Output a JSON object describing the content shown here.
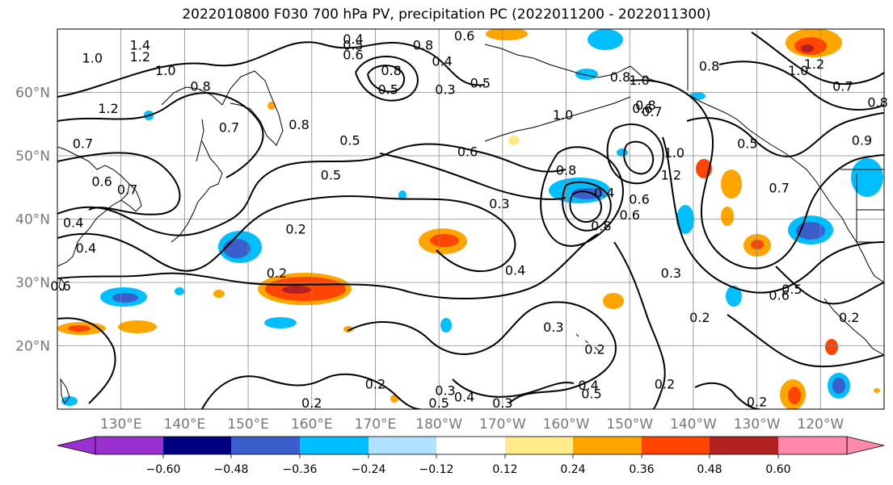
{
  "title": "2022010800 F030 700 hPa PV, precipitation PC (2022011200 - 2022011300)",
  "lat_labels": [
    {
      "lat": 60,
      "text": "60°N"
    },
    {
      "lat": 50,
      "text": "50°N"
    },
    {
      "lat": 40,
      "text": "40°N"
    },
    {
      "lat": 30,
      "text": "30°N"
    },
    {
      "lat": 20,
      "text": "20°N"
    }
  ],
  "lon_labels": [
    {
      "lon": 130,
      "text": "130°E"
    },
    {
      "lon": 140,
      "text": "140°E"
    },
    {
      "lon": 150,
      "text": "150°E"
    },
    {
      "lon": 160,
      "text": "160°E"
    },
    {
      "lon": 170,
      "text": "170°E"
    },
    {
      "lon": 180,
      "text": "180°W"
    },
    {
      "lon": 190,
      "text": "170°W"
    },
    {
      "lon": 200,
      "text": "160°W"
    },
    {
      "lon": 210,
      "text": "150°W"
    },
    {
      "lon": 220,
      "text": "140°W"
    },
    {
      "lon": 230,
      "text": "130°W"
    },
    {
      "lon": 240,
      "text": "120°W"
    }
  ],
  "colorbar": {
    "colors": [
      "#9b30d0",
      "#000080",
      "#3a5fcd",
      "#00bfff",
      "#b0e2ff",
      "#ffffff",
      "#ffeb8a",
      "#ffa500",
      "#ff4500",
      "#b22222",
      "#ff88aa"
    ],
    "ticks": [
      "−0.60",
      "−0.48",
      "−0.36",
      "−0.24",
      "−0.12",
      "0.12",
      "0.24",
      "0.36",
      "0.48",
      "0.60"
    ]
  },
  "contour_labels": [
    {
      "lon": 125.5,
      "lat": 65.5,
      "text": "1.0"
    },
    {
      "lon": 133,
      "lat": 67.5,
      "text": "1.4"
    },
    {
      "lon": 133,
      "lat": 65.7,
      "text": "1.2"
    },
    {
      "lon": 137,
      "lat": 63.5,
      "text": "1.0"
    },
    {
      "lon": 128,
      "lat": 57.5,
      "text": "1.2"
    },
    {
      "lon": 142.5,
      "lat": 61,
      "text": "0.8"
    },
    {
      "lon": 124,
      "lat": 52,
      "text": "0.7"
    },
    {
      "lon": 147,
      "lat": 54.5,
      "text": "0.7"
    },
    {
      "lon": 158,
      "lat": 55,
      "text": "0.8"
    },
    {
      "lon": 166.5,
      "lat": 68.5,
      "text": "0.4"
    },
    {
      "lon": 166.5,
      "lat": 67.5,
      "text": "0.5"
    },
    {
      "lon": 166.5,
      "lat": 66,
      "text": "0.6"
    },
    {
      "lon": 172.5,
      "lat": 63.5,
      "text": "0.8"
    },
    {
      "lon": 177.5,
      "lat": 67.5,
      "text": "0.8"
    },
    {
      "lon": 180.5,
      "lat": 65,
      "text": "0.4"
    },
    {
      "lon": 184,
      "lat": 69,
      "text": "0.6"
    },
    {
      "lon": 181,
      "lat": 60.5,
      "text": "0.3"
    },
    {
      "lon": 186.5,
      "lat": 61.5,
      "text": "0.5"
    },
    {
      "lon": 172,
      "lat": 60.5,
      "text": "0.5"
    },
    {
      "lon": 166,
      "lat": 52.5,
      "text": "0.5"
    },
    {
      "lon": 163,
      "lat": 47,
      "text": "0.5"
    },
    {
      "lon": 184.5,
      "lat": 50.7,
      "text": "0.6"
    },
    {
      "lon": 200,
      "lat": 47.8,
      "text": "0.8"
    },
    {
      "lon": 199.5,
      "lat": 56.5,
      "text": "1.0"
    },
    {
      "lon": 208.5,
      "lat": 62.5,
      "text": "0.8"
    },
    {
      "lon": 211.5,
      "lat": 62,
      "text": "1.0"
    },
    {
      "lon": 212.5,
      "lat": 58,
      "text": "0.8"
    },
    {
      "lon": 212,
      "lat": 57.5,
      "text": "0.6"
    },
    {
      "lon": 213.5,
      "lat": 57,
      "text": "0.7"
    },
    {
      "lon": 217,
      "lat": 50.5,
      "text": "1.0"
    },
    {
      "lon": 216.5,
      "lat": 47,
      "text": "1.2"
    },
    {
      "lon": 222.5,
      "lat": 64.2,
      "text": "0.8"
    },
    {
      "lon": 236.5,
      "lat": 63.5,
      "text": "1.0"
    },
    {
      "lon": 239,
      "lat": 64.5,
      "text": "1.2"
    },
    {
      "lon": 243.5,
      "lat": 61,
      "text": "0.7"
    },
    {
      "lon": 249,
      "lat": 58.5,
      "text": "0.8"
    },
    {
      "lon": 246.5,
      "lat": 52.5,
      "text": "0.9"
    },
    {
      "lon": 228.5,
      "lat": 52,
      "text": "0.5"
    },
    {
      "lon": 233.5,
      "lat": 45,
      "text": "0.7"
    },
    {
      "lon": 206,
      "lat": 44.2,
      "text": "0.4"
    },
    {
      "lon": 211.5,
      "lat": 43.2,
      "text": "0.6"
    },
    {
      "lon": 210,
      "lat": 40.7,
      "text": "0.6"
    },
    {
      "lon": 205.5,
      "lat": 39,
      "text": "0.8"
    },
    {
      "lon": 189.5,
      "lat": 42.5,
      "text": "0.3"
    },
    {
      "lon": 127,
      "lat": 46,
      "text": "0.6"
    },
    {
      "lon": 131,
      "lat": 44.7,
      "text": "0.7"
    },
    {
      "lon": 122.5,
      "lat": 39.5,
      "text": "0.4"
    },
    {
      "lon": 124.5,
      "lat": 35.5,
      "text": "0.4"
    },
    {
      "lon": 120.5,
      "lat": 29.5,
      "text": "0.6"
    },
    {
      "lon": 154.5,
      "lat": 31.5,
      "text": "0.2"
    },
    {
      "lon": 157.5,
      "lat": 38.5,
      "text": "0.2"
    },
    {
      "lon": 192,
      "lat": 32,
      "text": "0.4"
    },
    {
      "lon": 216.5,
      "lat": 31.5,
      "text": "0.3"
    },
    {
      "lon": 221,
      "lat": 24.5,
      "text": "0.2"
    },
    {
      "lon": 198,
      "lat": 23,
      "text": "0.3"
    },
    {
      "lon": 204.5,
      "lat": 19.5,
      "text": "0.2"
    },
    {
      "lon": 233.5,
      "lat": 28,
      "text": "0.6"
    },
    {
      "lon": 235.5,
      "lat": 29,
      "text": "0.5"
    },
    {
      "lon": 244.5,
      "lat": 24.5,
      "text": "0.2"
    },
    {
      "lon": 170,
      "lat": 14,
      "text": "0.2"
    },
    {
      "lon": 181,
      "lat": 13,
      "text": "0.3"
    },
    {
      "lon": 180,
      "lat": 11,
      "text": "0.5"
    },
    {
      "lon": 184,
      "lat": 12,
      "text": "0.4"
    },
    {
      "lon": 190,
      "lat": 11,
      "text": "0.3"
    },
    {
      "lon": 203.5,
      "lat": 13.8,
      "text": "0.4"
    },
    {
      "lon": 204,
      "lat": 12.5,
      "text": "0.5"
    },
    {
      "lon": 215.5,
      "lat": 14,
      "text": "0.2"
    },
    {
      "lon": 230,
      "lat": 11.2,
      "text": "0.2"
    },
    {
      "lon": 160,
      "lat": 11,
      "text": "0.2"
    }
  ]
}
